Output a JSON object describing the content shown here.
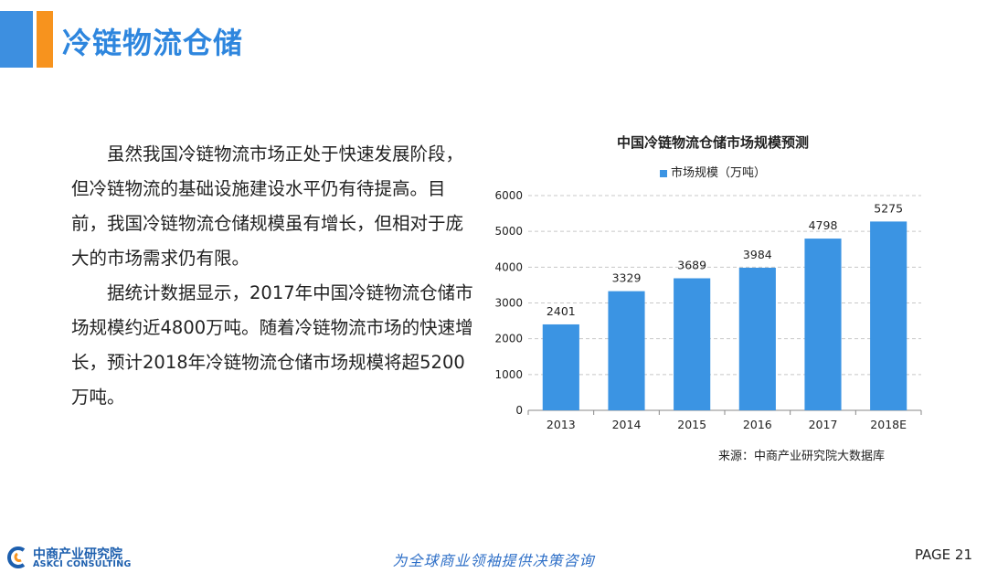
{
  "header": {
    "title": "冷链物流仓储"
  },
  "body": {
    "paragraphs": [
      "虽然我国冷链物流市场正处于快速发展阶段，但冷链物流的基础设施建设水平仍有待提高。目前，我国冷链物流仓储规模虽有增长，但相对于庞大的市场需求仍有限。",
      "据统计数据显示，2017年中国冷链物流仓储市场规模约近4800万吨。随着冷链物流市场的快速增长，预计2018年冷链物流仓储市场规模将超5200万吨。"
    ]
  },
  "chart_data": {
    "type": "bar",
    "title": "中国冷链物流仓储市场规模预测",
    "categories": [
      "2013",
      "2014",
      "2015",
      "2016",
      "2017",
      "2018E"
    ],
    "series": [
      {
        "name": "市场规模（万吨）",
        "values": [
          2401,
          3329,
          3689,
          3984,
          4798,
          5275
        ]
      }
    ],
    "ylim": [
      0,
      6000
    ],
    "yticks": [
      0,
      1000,
      2000,
      3000,
      4000,
      5000,
      6000
    ],
    "grid": true,
    "legend_position": "top",
    "bar_color": "#3b94e3",
    "source": "来源：中商产业研究院大数据库"
  },
  "footer": {
    "logo_cn": "中商产业研究院",
    "logo_en": "ASKCI CONSULTING",
    "slogan": "为全球商业领袖提供决策咨询",
    "page": "PAGE  21"
  }
}
